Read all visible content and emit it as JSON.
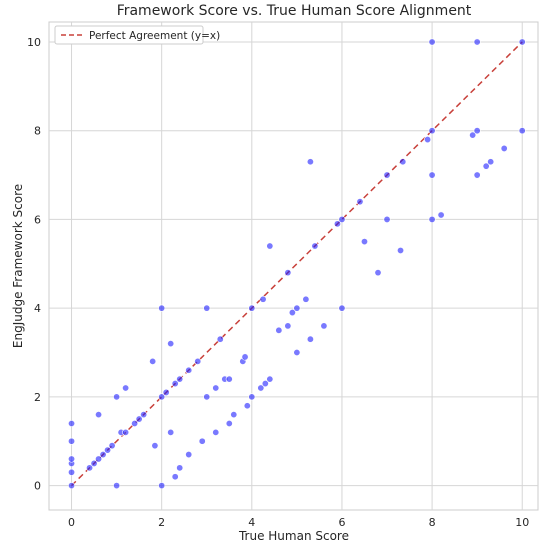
{
  "chart_data": {
    "type": "scatter",
    "title": "Framework Score vs. True Human Score Alignment",
    "xlabel": "True Human Score",
    "ylabel": "EngJudge Framework Score",
    "xlim": [
      -0.5,
      10.35
    ],
    "ylim": [
      -0.55,
      10.45
    ],
    "xticks": [
      0,
      2,
      4,
      6,
      8,
      10
    ],
    "yticks": [
      0,
      2,
      4,
      6,
      8,
      10
    ],
    "grid": true,
    "legend": {
      "position": "top-left",
      "entries": [
        "Perfect Agreement (y=x)"
      ]
    },
    "reference_line": {
      "name": "Perfect Agreement (y=x)",
      "x": [
        0,
        10
      ],
      "y": [
        0,
        10
      ],
      "style": "dashed",
      "color": "#c8403a"
    },
    "point_color": "#1f1fff",
    "points": [
      [
        0,
        0
      ],
      [
        0,
        0.3
      ],
      [
        0,
        0.5
      ],
      [
        0,
        0.6
      ],
      [
        0,
        1.0
      ],
      [
        0,
        1.4
      ],
      [
        0.4,
        0.4
      ],
      [
        0.5,
        0.5
      ],
      [
        0.6,
        0.6
      ],
      [
        0.7,
        0.7
      ],
      [
        0.8,
        0.8
      ],
      [
        0.9,
        0.9
      ],
      [
        0.6,
        1.6
      ],
      [
        1,
        0
      ],
      [
        1,
        2
      ],
      [
        1.2,
        2.2
      ],
      [
        1.1,
        1.2
      ],
      [
        1.2,
        1.2
      ],
      [
        1.4,
        1.4
      ],
      [
        1.5,
        1.5
      ],
      [
        1.6,
        1.6
      ],
      [
        1.8,
        2.8
      ],
      [
        1.85,
        0.9
      ],
      [
        2,
        0
      ],
      [
        2,
        2
      ],
      [
        2,
        4
      ],
      [
        2.1,
        2.1
      ],
      [
        2.2,
        1.2
      ],
      [
        2.2,
        3.2
      ],
      [
        2.3,
        0.2
      ],
      [
        2.3,
        2.3
      ],
      [
        2.4,
        2.4
      ],
      [
        2.4,
        0.4
      ],
      [
        2.6,
        2.6
      ],
      [
        2.6,
        0.7
      ],
      [
        2.8,
        2.8
      ],
      [
        2.9,
        1.0
      ],
      [
        3,
        2
      ],
      [
        3,
        4
      ],
      [
        3.2,
        1.2
      ],
      [
        3.2,
        2.2
      ],
      [
        3.3,
        3.3
      ],
      [
        3.4,
        2.4
      ],
      [
        3.5,
        1.4
      ],
      [
        3.5,
        2.4
      ],
      [
        3.6,
        1.6
      ],
      [
        3.8,
        2.8
      ],
      [
        3.85,
        2.9
      ],
      [
        3.9,
        1.8
      ],
      [
        4,
        2
      ],
      [
        4,
        4
      ],
      [
        4.2,
        2.2
      ],
      [
        4.25,
        4.2
      ],
      [
        4.3,
        2.3
      ],
      [
        4.4,
        2.4
      ],
      [
        4.4,
        5.4
      ],
      [
        4.6,
        3.5
      ],
      [
        4.8,
        3.6
      ],
      [
        4.8,
        4.8
      ],
      [
        4.9,
        3.9
      ],
      [
        5,
        3
      ],
      [
        5,
        4
      ],
      [
        5.2,
        4.2
      ],
      [
        5.3,
        3.3
      ],
      [
        5.3,
        7.3
      ],
      [
        5.4,
        5.4
      ],
      [
        5.6,
        3.6
      ],
      [
        5.9,
        5.9
      ],
      [
        6,
        4
      ],
      [
        6,
        6
      ],
      [
        6.4,
        6.4
      ],
      [
        6.5,
        5.5
      ],
      [
        6.8,
        4.8
      ],
      [
        7,
        6
      ],
      [
        7,
        7
      ],
      [
        7.3,
        5.3
      ],
      [
        7.35,
        7.3
      ],
      [
        7.9,
        7.8
      ],
      [
        8,
        6
      ],
      [
        8,
        7
      ],
      [
        8,
        8
      ],
      [
        8,
        10
      ],
      [
        8.2,
        6.1
      ],
      [
        8.9,
        7.9
      ],
      [
        9,
        7
      ],
      [
        9,
        8
      ],
      [
        9,
        10
      ],
      [
        9.2,
        7.2
      ],
      [
        9.3,
        7.3
      ],
      [
        9.6,
        7.6
      ],
      [
        10,
        8
      ],
      [
        10,
        10
      ]
    ]
  }
}
